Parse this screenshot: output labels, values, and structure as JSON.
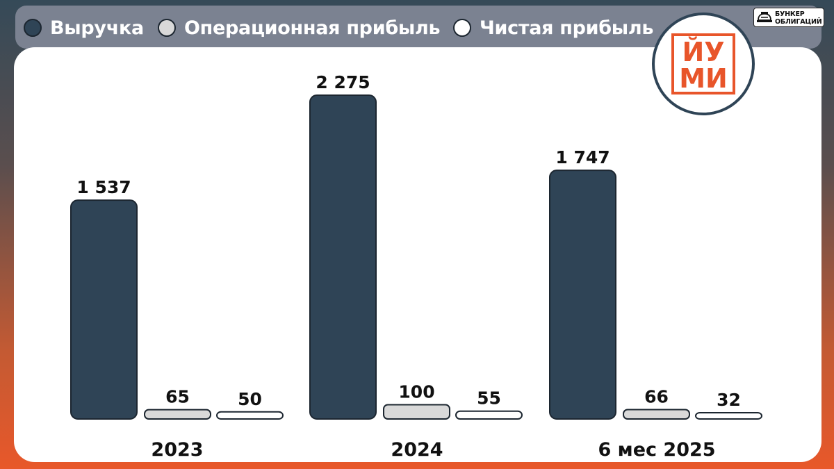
{
  "legend": [
    {
      "label": "Выручка",
      "color": "#2f4456"
    },
    {
      "label": "Операционная прибыль",
      "color": "#d9d9d9"
    },
    {
      "label": "Чистая прибыль",
      "color": "#ffffff"
    }
  ],
  "brand": {
    "line1": "БУНКЕР",
    "line2": "ОБЛИГАЦИЙ"
  },
  "logo": {
    "line1": "ЙУ",
    "line2": "МИ",
    "color": "#e8552a"
  },
  "chart_data": {
    "type": "bar",
    "categories": [
      "2023",
      "2024",
      "6 мес 2025"
    ],
    "series": [
      {
        "name": "Выручка",
        "values": [
          1537,
          2275,
          1747
        ],
        "labels": [
          "1 537",
          "2 275",
          "1 747"
        ],
        "color": "#2f4456"
      },
      {
        "name": "Операционная прибыль",
        "values": [
          65,
          100,
          66
        ],
        "labels": [
          "65",
          "100",
          "66"
        ],
        "color": "#d9d9d9"
      },
      {
        "name": "Чистая прибыль",
        "values": [
          50,
          55,
          32
        ],
        "labels": [
          "50",
          "55",
          "32"
        ],
        "color": "#ffffff"
      }
    ],
    "ylim": [
      0,
      2275
    ],
    "grid": false,
    "legend_position": "top"
  }
}
